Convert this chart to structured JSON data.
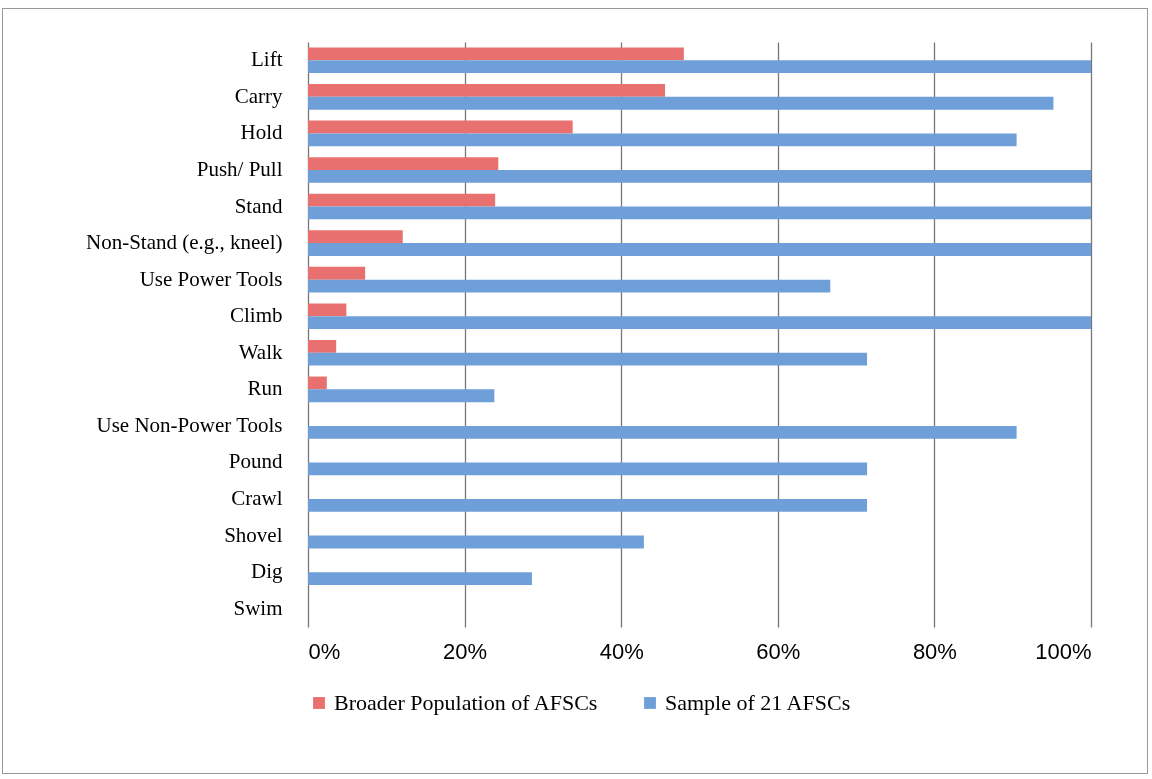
{
  "chart_data": {
    "type": "bar",
    "orientation": "horizontal",
    "categories": [
      "Lift",
      "Carry",
      "Hold",
      "Push/ Pull",
      "Stand",
      "Non-Stand (e.g., kneel)",
      "Use Power Tools",
      "Climb",
      "Walk",
      "Run",
      "Use Non-Power Tools",
      "Pound",
      "Crawl",
      "Shovel",
      "Dig",
      "Swim"
    ],
    "series": [
      {
        "name": "Broader Population of AFSCs",
        "color": "#e8706e",
        "values": [
          48,
          45.6,
          33.8,
          24.3,
          23.9,
          12.1,
          7.3,
          4.9,
          3.6,
          2.4,
          0,
          0,
          0,
          0,
          0,
          0
        ]
      },
      {
        "name": "Sample of 21 AFSCs",
        "color": "#6f9fd9",
        "values": [
          100,
          95.2,
          90.5,
          100,
          100,
          100,
          66.7,
          100,
          71.4,
          23.8,
          90.5,
          71.4,
          71.4,
          42.9,
          28.6,
          0
        ]
      }
    ],
    "xlim": [
      0,
      100
    ],
    "xticks": [
      {
        "value": 0,
        "label": "0%"
      },
      {
        "value": 20,
        "label": "20%"
      },
      {
        "value": 40,
        "label": "40%"
      },
      {
        "value": 60,
        "label": "60%"
      },
      {
        "value": 80,
        "label": "80%"
      },
      {
        "value": 100,
        "label": "100%"
      }
    ],
    "grid": "x",
    "legend": "bottom"
  }
}
